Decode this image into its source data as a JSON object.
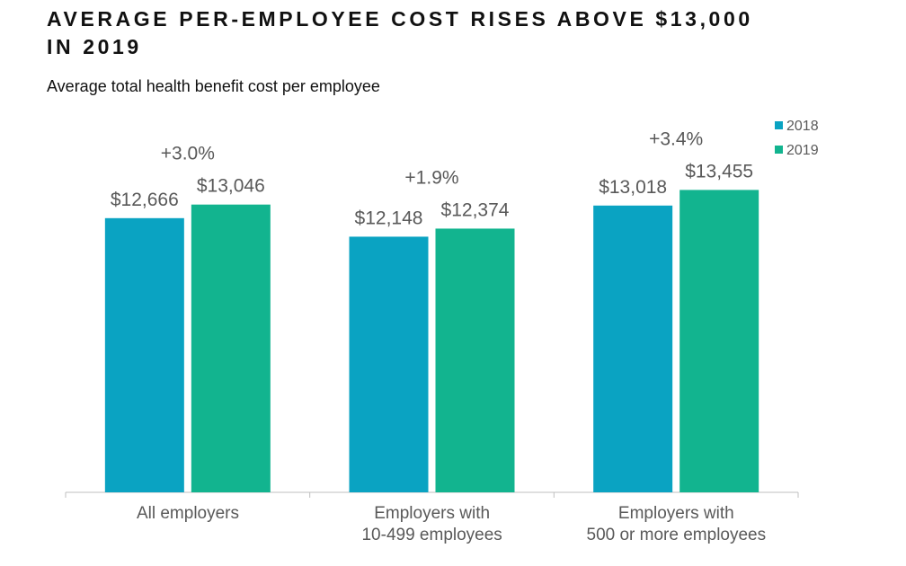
{
  "chart_data": {
    "type": "bar",
    "title": "AVERAGE PER-EMPLOYEE COST RISES ABOVE $13,000\nIN 2019",
    "subtitle": "Average total health benefit cost per employee",
    "categories": [
      "All employers",
      "Employers with\n10-499 employees",
      "Employers with\n500 or more employees"
    ],
    "series": [
      {
        "name": "2018",
        "color": "#0aa3c2",
        "values": [
          12666,
          12148,
          13018
        ],
        "value_labels": [
          "$12,666",
          "$12,148",
          "$13,018"
        ]
      },
      {
        "name": "2019",
        "color": "#12b48f",
        "values": [
          13046,
          12374,
          13455
        ],
        "value_labels": [
          "$13,046",
          "$12,374",
          "$13,455"
        ]
      }
    ],
    "annotations": [
      "+3.0%",
      "+1.9%",
      "+3.4%"
    ],
    "ylim": [
      5000,
      15500
    ],
    "legend": "top-right"
  }
}
